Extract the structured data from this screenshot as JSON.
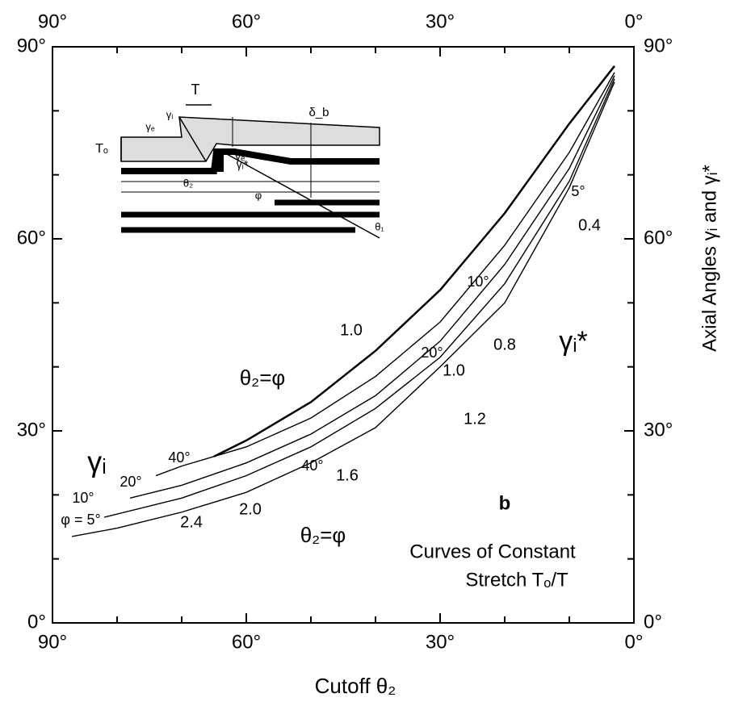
{
  "chart_data": {
    "type": "line",
    "x_label": "Cutoff θ₂",
    "y_label": "Axial Angles γᵢ and γᵢ*",
    "xlim": [
      90,
      0
    ],
    "ylim": [
      0,
      90
    ],
    "xticks": [
      {
        "value": 90,
        "label": "90°"
      },
      {
        "value": 60,
        "label": "60°"
      },
      {
        "value": 30,
        "label": "30°"
      },
      {
        "value": 0,
        "label": "0°"
      }
    ],
    "yticks": [
      {
        "value": 0,
        "label": "0°"
      },
      {
        "value": 30,
        "label": "30°"
      },
      {
        "value": 60,
        "label": "60°"
      },
      {
        "value": 90,
        "label": "90°"
      }
    ],
    "xminor_ticks": [
      80,
      70,
      50,
      40,
      20,
      10
    ],
    "yminor_ticks": [
      10,
      20,
      40,
      50,
      70,
      80
    ],
    "color": "#000000",
    "series": [
      {
        "name": "φ = 5°",
        "x": [
          87,
          80,
          70,
          60,
          50,
          40,
          30,
          20,
          10,
          3
        ],
        "values": [
          13.5,
          14.8,
          17.3,
          20.4,
          25,
          30.5,
          40,
          50,
          68,
          84.5
        ]
      },
      {
        "name": "10°",
        "x": [
          82,
          70,
          60,
          50,
          40,
          30,
          20,
          10,
          3
        ],
        "values": [
          16.5,
          19.5,
          23,
          27.5,
          33.5,
          41.5,
          53,
          69,
          85
        ]
      },
      {
        "name": "20°",
        "x": [
          78,
          70,
          60,
          50,
          40,
          30,
          20,
          10,
          3
        ],
        "values": [
          19.5,
          21.5,
          25,
          29.5,
          35.5,
          44,
          56,
          71,
          85.5
        ]
      },
      {
        "name": "40°",
        "x": [
          74,
          70,
          60,
          50,
          40,
          30,
          20,
          10,
          3
        ],
        "values": [
          23,
          24.5,
          27.5,
          32,
          38.5,
          47,
          59,
          73.5,
          86
        ]
      },
      {
        "name": "θ₂=φ",
        "x": [
          65,
          60,
          50,
          40,
          30,
          20,
          10,
          3
        ],
        "values": [
          26,
          28.5,
          34.5,
          42.5,
          52,
          64,
          78,
          87
        ]
      }
    ],
    "annotations": [
      "γᵢ",
      "γᵢ*",
      "b",
      "Curves of Constant",
      "Stretch Tₒ/T",
      "θ₂=φ",
      "1.0",
      "0.8",
      "0.4",
      "1.0",
      "1.2",
      "1.6",
      "2.0",
      "2.4",
      "5°",
      "10°",
      "20°",
      "40°"
    ]
  },
  "inset": {
    "labels": [
      "T",
      "Tₒ",
      "γₑ",
      "γᵢ",
      "δ_b",
      "γᵢ*",
      "γₑ*",
      "θ₂",
      "φ",
      "θ₁"
    ]
  }
}
